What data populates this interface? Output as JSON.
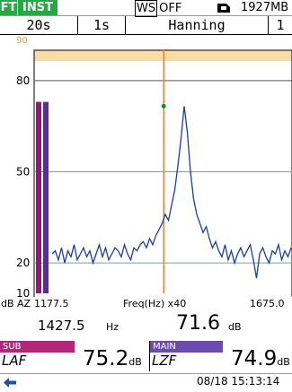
{
  "status": {
    "mode1": "FT",
    "mode2": "INST",
    "ws_box": "WS",
    "ws_state": "OFF",
    "memory_count": "1927MB"
  },
  "settings": {
    "time": "20s",
    "step": "1s",
    "window": "Hanning",
    "channel": "1"
  },
  "graph": {
    "y_ticks": [
      "90",
      "80",
      "50",
      "20",
      "10"
    ],
    "y_axis_unit": "dB",
    "band_label": "AZ",
    "x_start": "1177.5",
    "x_label": "Freq(Hz) x40",
    "x_end": "1675.0"
  },
  "chart_data": {
    "type": "line",
    "x_range": [
      1177.5,
      1675.0
    ],
    "ylim": [
      10,
      90
    ],
    "peak": {
      "freq": 1427.5,
      "level": 71.6
    },
    "bars": [
      {
        "name": "A",
        "value": 73.0
      },
      {
        "name": "Z",
        "value": 73.0
      }
    ],
    "series": [
      {
        "values": [
          23,
          24,
          21,
          25,
          20,
          24,
          22,
          26,
          21,
          23,
          25,
          22,
          24,
          20,
          23,
          26,
          22,
          25,
          21,
          23,
          25,
          24,
          22,
          26,
          23,
          21,
          25,
          24,
          26,
          27,
          25,
          28,
          26,
          29,
          31,
          33,
          36,
          34,
          39,
          44,
          52,
          61,
          71.6,
          63,
          50,
          41,
          36,
          33,
          30,
          32,
          28,
          25,
          27,
          24,
          22,
          26,
          21,
          24,
          20,
          23,
          25,
          22,
          24,
          26,
          21,
          15,
          23,
          25,
          22,
          20,
          24,
          23,
          26,
          21,
          24,
          22,
          25
        ]
      }
    ],
    "colors": {
      "line": "#1a3f9e",
      "peak_cursor": "#e8833a",
      "grid": "#5fae9b",
      "bar_a": "#8b1c73",
      "bar_z": "#5a2d91",
      "overload_band": "#f9dca3"
    }
  },
  "readout": {
    "freq": "1427.5",
    "freq_unit": "Hz",
    "level": "71.6",
    "level_unit": "dB"
  },
  "sub_panel": {
    "tag": "SUB",
    "name": "LAF",
    "value": "75.2",
    "unit": "dB"
  },
  "main_panel": {
    "tag": "MAIN",
    "name": "LZF",
    "value": "74.9",
    "unit": "dB"
  },
  "footer": {
    "datetime": "08/18 15:13:14"
  }
}
